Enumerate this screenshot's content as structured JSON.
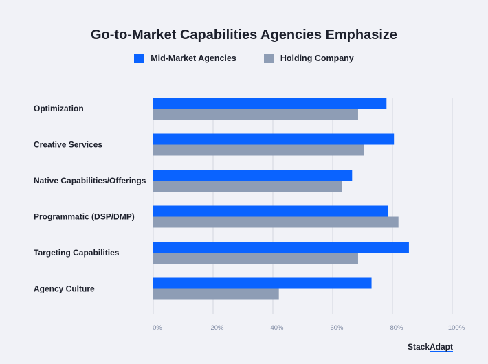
{
  "chart_data": {
    "type": "bar",
    "orientation": "horizontal",
    "title": "Go-to-Market Capabilities Agencies Emphasize",
    "categories": [
      "Optimization",
      "Creative Services",
      "Native Capabilities/Offerings",
      "Programmatic (DSP/DMP)",
      "Targeting Capabilities",
      "Agency Culture"
    ],
    "series": [
      {
        "name": "Mid-Market Agencies",
        "color": "#0a63ff",
        "values": [
          78,
          80.5,
          66.5,
          78.5,
          85.5,
          73
        ]
      },
      {
        "name": "Holding Company",
        "color": "#8e9db5",
        "values": [
          68.5,
          70.5,
          63,
          82,
          68.5,
          42
        ]
      }
    ],
    "xlim": [
      0,
      100
    ],
    "xticks": [
      "0%",
      "20%",
      "40%",
      "60%",
      "80%",
      "100%"
    ],
    "xlabel": "",
    "ylabel": "",
    "grid": true,
    "legend": "top-center"
  },
  "brand": {
    "part1": "Stack",
    "part2": "Adapt"
  }
}
